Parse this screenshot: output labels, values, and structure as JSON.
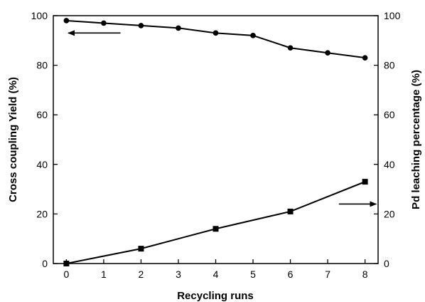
{
  "chart_data": {
    "type": "line",
    "xlabel": "Recycling runs",
    "ylabel_left": "Cross coupling Yield (%)",
    "ylabel_right": "Pd leaching percentage (%)",
    "xlim": [
      -0.35,
      8.35
    ],
    "ylim": [
      0,
      100
    ],
    "ylim_right": [
      0,
      100
    ],
    "x_ticks": [
      0,
      1,
      2,
      3,
      4,
      5,
      6,
      7,
      8
    ],
    "y_ticks": [
      0,
      20,
      40,
      60,
      80,
      100
    ],
    "y_ticks_right": [
      0,
      20,
      40,
      60,
      80,
      100
    ],
    "grid": false,
    "line_color": "#000000",
    "series": [
      {
        "axis": "left",
        "marker": "circle",
        "x": [
          0,
          1,
          2,
          3,
          4,
          5,
          6,
          7,
          8
        ],
        "y": [
          98,
          97,
          96,
          95,
          93,
          92,
          87,
          85,
          83
        ]
      },
      {
        "axis": "right",
        "marker": "square",
        "x": [
          0,
          2,
          4,
          6,
          8
        ],
        "y": [
          0,
          6,
          14,
          21,
          33
        ]
      }
    ],
    "annotations": [
      {
        "type": "arrow",
        "direction": "left",
        "points_to": "left-axis",
        "x_from": 1.45,
        "x_to": 0.05,
        "y": 93
      },
      {
        "type": "arrow",
        "direction": "right",
        "points_to": "right-axis",
        "x_from": 7.3,
        "x_to": 8.3,
        "y": 24
      }
    ]
  }
}
